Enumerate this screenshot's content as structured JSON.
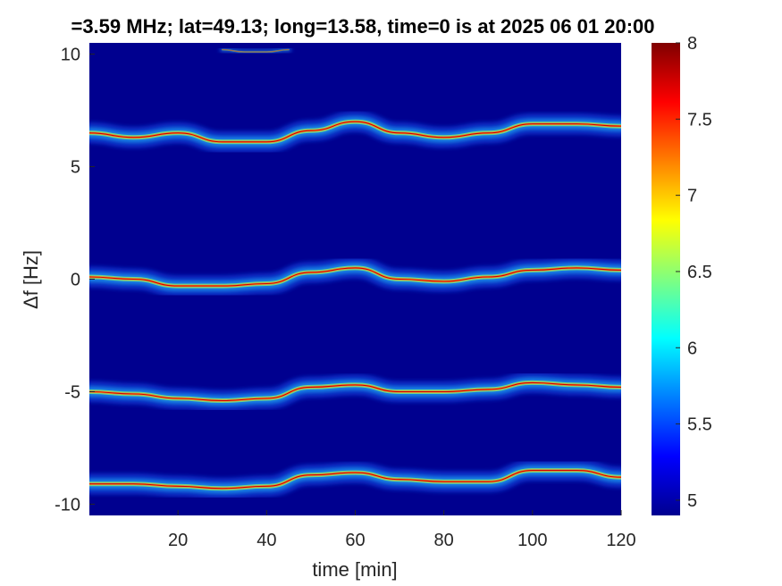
{
  "chart_data": {
    "type": "heatmap",
    "title": "=3.59 MHz;  lat=49.13; long=13.58, time=0 is at 2025 06 01 20:00",
    "xlabel": "time [min]",
    "ylabel": "Δf [Hz]",
    "xlim": [
      0,
      120
    ],
    "ylim": [
      -10.5,
      10.5
    ],
    "x_ticks": [
      20,
      40,
      60,
      80,
      100,
      120
    ],
    "y_ticks": [
      -10,
      -5,
      0,
      5,
      10
    ],
    "colorbar": {
      "min": 4.9,
      "max": 8,
      "ticks": [
        5,
        5.5,
        6,
        6.5,
        7,
        7.5,
        8
      ],
      "colormap": "jet"
    },
    "background_color": "#00008f",
    "bands": [
      {
        "name": "+6.5 Hz",
        "x": [
          0,
          10,
          20,
          30,
          40,
          50,
          60,
          70,
          80,
          90,
          100,
          110,
          120
        ],
        "y": [
          6.5,
          6.3,
          6.5,
          6.1,
          6.1,
          6.6,
          7.0,
          6.5,
          6.3,
          6.5,
          6.9,
          6.9,
          6.8
        ]
      },
      {
        "name": "0 Hz",
        "x": [
          0,
          10,
          20,
          30,
          40,
          50,
          60,
          70,
          80,
          90,
          100,
          110,
          120
        ],
        "y": [
          0.1,
          0.0,
          -0.3,
          -0.3,
          -0.2,
          0.3,
          0.5,
          0.0,
          -0.1,
          0.1,
          0.4,
          0.5,
          0.4
        ]
      },
      {
        "name": "-5 Hz",
        "x": [
          0,
          10,
          20,
          30,
          40,
          50,
          60,
          70,
          80,
          90,
          100,
          110,
          120
        ],
        "y": [
          -5.0,
          -5.1,
          -5.3,
          -5.4,
          -5.3,
          -4.8,
          -4.7,
          -5.0,
          -5.0,
          -4.9,
          -4.6,
          -4.7,
          -4.8
        ]
      },
      {
        "name": "-9 Hz",
        "x": [
          0,
          10,
          20,
          30,
          40,
          50,
          60,
          70,
          80,
          90,
          100,
          110,
          120
        ],
        "y": [
          -9.1,
          -9.1,
          -9.2,
          -9.3,
          -9.2,
          -8.7,
          -8.6,
          -8.9,
          -9.0,
          -9.0,
          -8.5,
          -8.5,
          -8.8
        ]
      },
      {
        "name": "+10 Hz",
        "x": [
          30,
          35,
          40,
          45
        ],
        "y": [
          10.2,
          10.1,
          10.1,
          10.2
        ]
      }
    ]
  }
}
